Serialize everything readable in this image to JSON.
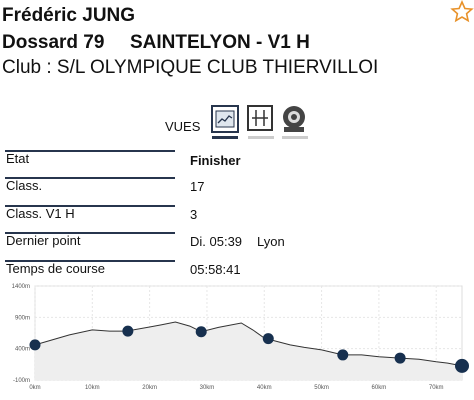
{
  "header": {
    "name": "Frédéric JUNG",
    "bib": "Dossard 79",
    "race": "SAINTELYON - V1 H",
    "club": "Club : S/L OLYMPIQUE CLUB THIERVILLOI"
  },
  "views_label": "VUES",
  "table": {
    "rows": [
      [
        "Etat",
        "Finisher"
      ],
      [
        "Class.",
        "17"
      ],
      [
        "Class. V1 H",
        "3"
      ],
      [
        "Dernier point",
        "Di. 05:39",
        "Lyon"
      ],
      [
        "Temps de course",
        "05:58:41"
      ]
    ]
  },
  "profile": {
    "x": [
      0,
      3,
      6,
      10,
      13,
      16,
      20,
      22,
      24.5,
      27,
      29,
      32,
      36,
      38,
      40,
      42,
      44.5,
      47,
      50,
      53.7,
      57,
      60,
      63.7,
      67,
      70,
      72,
      74.5
    ],
    "values": [
      460,
      540,
      620,
      700,
      680,
      680,
      745,
      780,
      825,
      760,
      670,
      740,
      810,
      700,
      570,
      520,
      460,
      420,
      380,
      300,
      300,
      270,
      250,
      230,
      190,
      170,
      125
    ],
    "checkpoints": {
      "x": [
        0,
        16.2,
        29,
        40.7,
        53.7,
        63.7,
        74.5
      ],
      "values": [
        460,
        680,
        670,
        560,
        300,
        250,
        125
      ]
    },
    "xlim": [
      0,
      74.5
    ],
    "ylim": [
      -100,
      1400
    ],
    "xticks": [
      {
        "value": 0,
        "label": "0km"
      },
      {
        "value": 10,
        "label": "10km"
      },
      {
        "value": 20,
        "label": "20km"
      },
      {
        "value": 30,
        "label": "30km"
      },
      {
        "value": 40,
        "label": "40km"
      },
      {
        "value": 50,
        "label": "50km"
      },
      {
        "value": 60,
        "label": "60km"
      },
      {
        "value": 70,
        "label": "70km"
      }
    ],
    "yticks": [
      {
        "value": -100,
        "label": "-100m"
      },
      {
        "value": 400,
        "label": "400m"
      },
      {
        "value": 900,
        "label": "900m"
      },
      {
        "value": 1400,
        "label": "1400m"
      }
    ]
  }
}
